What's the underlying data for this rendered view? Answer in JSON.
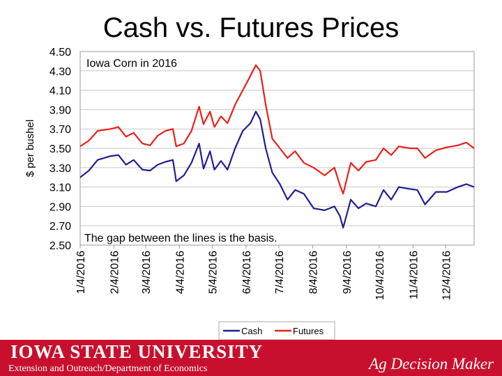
{
  "title": "Cash vs. Futures Prices",
  "footer": {
    "university": "IOWA STATE UNIVERSITY",
    "department": "Extension and Outreach/Department of Economics",
    "brand": "Ag Decision Maker"
  },
  "chart_data": {
    "type": "line",
    "ylabel": "$ per bushel",
    "ylim": [
      2.5,
      4.5
    ],
    "yticks": [
      "4.50",
      "4.30",
      "4.10",
      "3.90",
      "3.70",
      "3.50",
      "3.30",
      "3.10",
      "2.90",
      "2.70",
      "2.50"
    ],
    "xticks": [
      "1/4/2016",
      "2/4/2016",
      "3/4/2016",
      "4/4/2016",
      "5/4/2016",
      "6/4/2016",
      "7/4/2016",
      "8/4/2016",
      "9/4/2016",
      "10/4/2016",
      "11/4/2016",
      "12/4/2016"
    ],
    "x_range": [
      "2016-01-04",
      "2016-12-30"
    ],
    "grid": "horizontal",
    "legend_position": "bottom",
    "annotations": [
      "Iowa Corn in 2016",
      "The gap between the lines is the basis."
    ],
    "colors": {
      "Cash": "#1f1f8f",
      "Futures": "#e8201a"
    },
    "series": [
      {
        "name": "Cash",
        "points": [
          [
            "2016-01-04",
            3.2
          ],
          [
            "2016-01-12",
            3.27
          ],
          [
            "2016-01-20",
            3.38
          ],
          [
            "2016-02-01",
            3.42
          ],
          [
            "2016-02-08",
            3.43
          ],
          [
            "2016-02-15",
            3.33
          ],
          [
            "2016-02-22",
            3.38
          ],
          [
            "2016-03-01",
            3.28
          ],
          [
            "2016-03-08",
            3.27
          ],
          [
            "2016-03-15",
            3.33
          ],
          [
            "2016-03-22",
            3.36
          ],
          [
            "2016-03-29",
            3.38
          ],
          [
            "2016-04-01",
            3.16
          ],
          [
            "2016-04-08",
            3.22
          ],
          [
            "2016-04-15",
            3.35
          ],
          [
            "2016-04-22",
            3.55
          ],
          [
            "2016-04-26",
            3.29
          ],
          [
            "2016-05-02",
            3.47
          ],
          [
            "2016-05-06",
            3.28
          ],
          [
            "2016-05-12",
            3.37
          ],
          [
            "2016-05-18",
            3.28
          ],
          [
            "2016-05-25",
            3.5
          ],
          [
            "2016-06-01",
            3.68
          ],
          [
            "2016-06-08",
            3.76
          ],
          [
            "2016-06-13",
            3.88
          ],
          [
            "2016-06-17",
            3.8
          ],
          [
            "2016-06-22",
            3.5
          ],
          [
            "2016-06-28",
            3.25
          ],
          [
            "2016-07-05",
            3.13
          ],
          [
            "2016-07-12",
            2.97
          ],
          [
            "2016-07-19",
            3.07
          ],
          [
            "2016-07-27",
            3.03
          ],
          [
            "2016-08-05",
            2.88
          ],
          [
            "2016-08-15",
            2.86
          ],
          [
            "2016-08-24",
            2.9
          ],
          [
            "2016-08-29",
            2.8
          ],
          [
            "2016-09-01",
            2.68
          ],
          [
            "2016-09-08",
            2.97
          ],
          [
            "2016-09-15",
            2.88
          ],
          [
            "2016-09-22",
            2.93
          ],
          [
            "2016-10-01",
            2.9
          ],
          [
            "2016-10-08",
            3.07
          ],
          [
            "2016-10-15",
            2.97
          ],
          [
            "2016-10-22",
            3.1
          ],
          [
            "2016-11-01",
            3.08
          ],
          [
            "2016-11-08",
            3.07
          ],
          [
            "2016-11-15",
            2.92
          ],
          [
            "2016-11-25",
            3.05
          ],
          [
            "2016-12-05",
            3.05
          ],
          [
            "2016-12-15",
            3.1
          ],
          [
            "2016-12-23",
            3.13
          ],
          [
            "2016-12-30",
            3.1
          ]
        ]
      },
      {
        "name": "Futures",
        "points": [
          [
            "2016-01-04",
            3.52
          ],
          [
            "2016-01-12",
            3.58
          ],
          [
            "2016-01-20",
            3.68
          ],
          [
            "2016-02-01",
            3.7
          ],
          [
            "2016-02-08",
            3.72
          ],
          [
            "2016-02-15",
            3.62
          ],
          [
            "2016-02-22",
            3.66
          ],
          [
            "2016-03-01",
            3.55
          ],
          [
            "2016-03-08",
            3.53
          ],
          [
            "2016-03-15",
            3.63
          ],
          [
            "2016-03-22",
            3.68
          ],
          [
            "2016-03-29",
            3.7
          ],
          [
            "2016-04-01",
            3.52
          ],
          [
            "2016-04-08",
            3.55
          ],
          [
            "2016-04-15",
            3.68
          ],
          [
            "2016-04-22",
            3.93
          ],
          [
            "2016-04-26",
            3.75
          ],
          [
            "2016-05-02",
            3.88
          ],
          [
            "2016-05-06",
            3.72
          ],
          [
            "2016-05-12",
            3.83
          ],
          [
            "2016-05-18",
            3.76
          ],
          [
            "2016-05-25",
            3.95
          ],
          [
            "2016-06-01",
            4.1
          ],
          [
            "2016-06-08",
            4.25
          ],
          [
            "2016-06-13",
            4.36
          ],
          [
            "2016-06-17",
            4.3
          ],
          [
            "2016-06-22",
            3.95
          ],
          [
            "2016-06-28",
            3.6
          ],
          [
            "2016-07-05",
            3.5
          ],
          [
            "2016-07-12",
            3.4
          ],
          [
            "2016-07-19",
            3.47
          ],
          [
            "2016-07-27",
            3.35
          ],
          [
            "2016-08-05",
            3.3
          ],
          [
            "2016-08-15",
            3.22
          ],
          [
            "2016-08-24",
            3.3
          ],
          [
            "2016-08-29",
            3.12
          ],
          [
            "2016-09-01",
            3.03
          ],
          [
            "2016-09-08",
            3.35
          ],
          [
            "2016-09-15",
            3.27
          ],
          [
            "2016-09-22",
            3.36
          ],
          [
            "2016-10-01",
            3.38
          ],
          [
            "2016-10-08",
            3.5
          ],
          [
            "2016-10-15",
            3.43
          ],
          [
            "2016-10-22",
            3.52
          ],
          [
            "2016-11-01",
            3.5
          ],
          [
            "2016-11-08",
            3.5
          ],
          [
            "2016-11-15",
            3.4
          ],
          [
            "2016-11-25",
            3.48
          ],
          [
            "2016-12-05",
            3.51
          ],
          [
            "2016-12-15",
            3.53
          ],
          [
            "2016-12-23",
            3.56
          ],
          [
            "2016-12-30",
            3.5
          ]
        ]
      }
    ]
  }
}
